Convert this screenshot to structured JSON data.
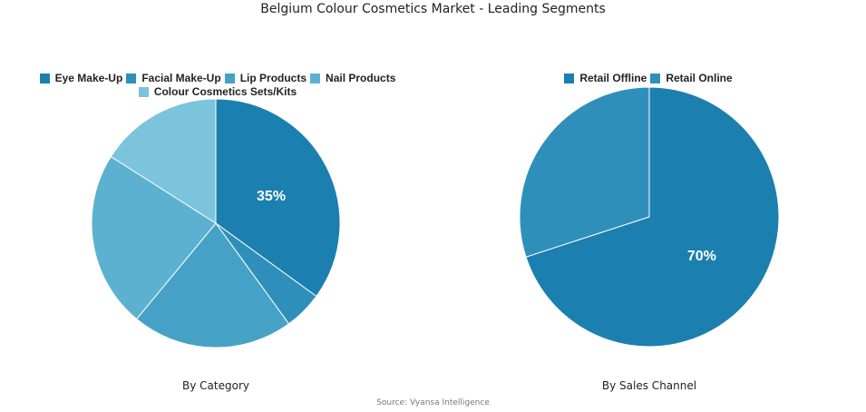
{
  "title": "Belgium Colour Cosmetics Market - Leading Segments",
  "source": "Source: Vyansa Intelligence",
  "chart_data": [
    {
      "type": "pie",
      "caption": "By Category",
      "categories": [
        "Eye Make-Up",
        "Facial Make-Up",
        "Lip Products",
        "Nail Products",
        "Colour Cosmetics Sets/Kits"
      ],
      "values": [
        35,
        5,
        21,
        23,
        16
      ],
      "colors": [
        "#1b7fb0",
        "#2f8fbb",
        "#45a2c6",
        "#5cb1d1",
        "#7bc4dc"
      ],
      "data_labels": [
        "35%",
        "",
        "",
        "",
        ""
      ],
      "legend_position": "top"
    },
    {
      "type": "pie",
      "caption": "By Sales Channel",
      "categories": [
        "Retail Offline",
        "Retail Online"
      ],
      "values": [
        70,
        30
      ],
      "colors": [
        "#1b7fb0",
        "#2f8fbb"
      ],
      "data_labels": [
        "70%",
        ""
      ],
      "legend_position": "top"
    }
  ]
}
